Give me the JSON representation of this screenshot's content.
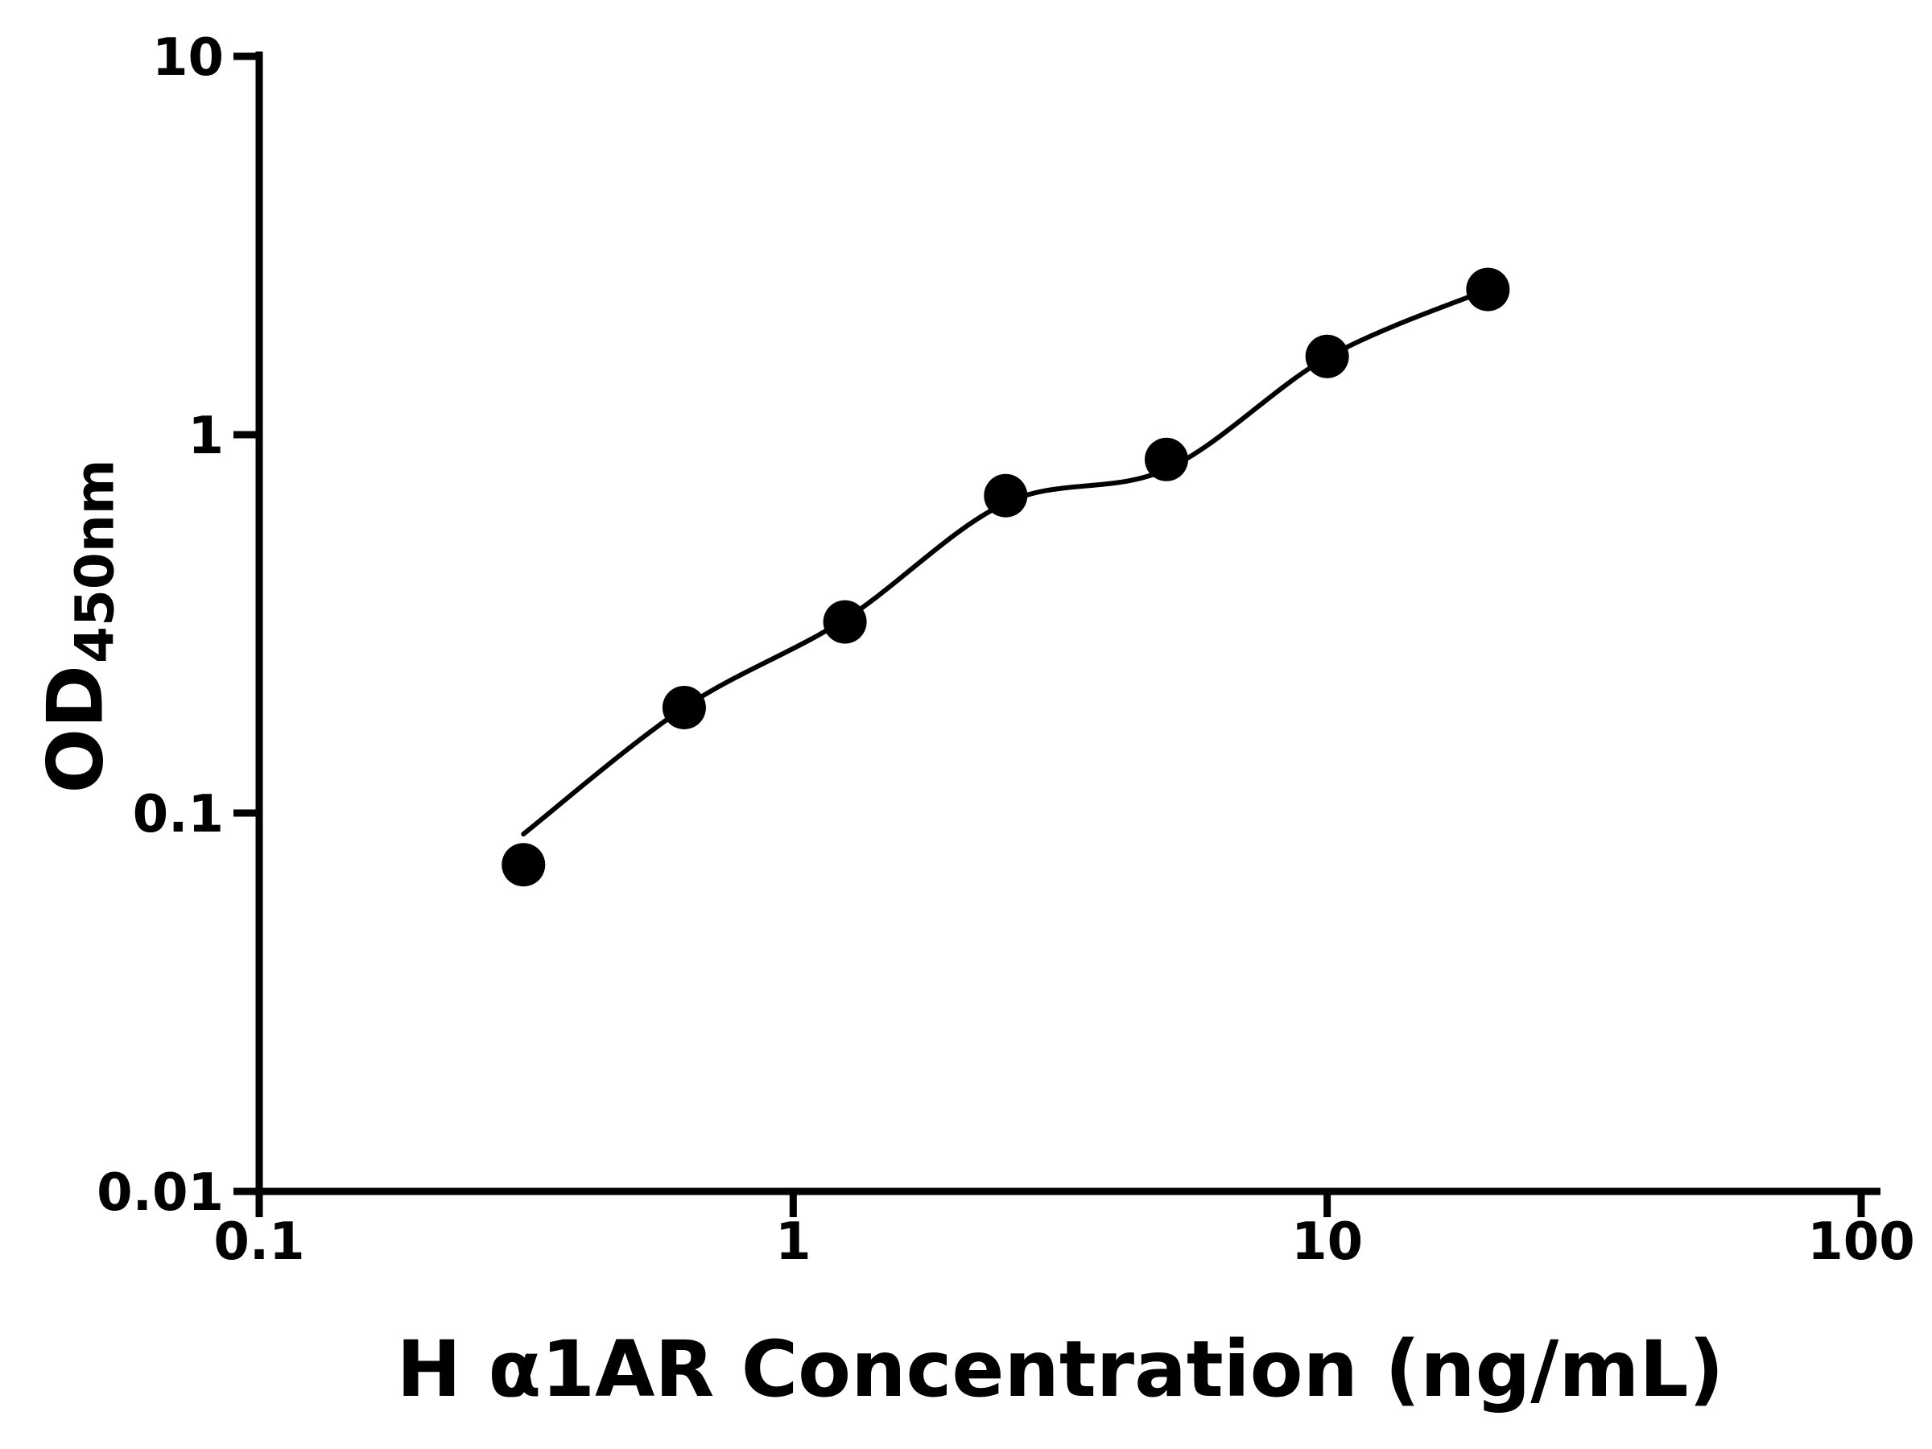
{
  "chart_data": {
    "type": "scatter",
    "title": "",
    "xlabel": "H α1AR Concentration (ng/mL)",
    "ylabel_main": "OD",
    "ylabel_sub": "450nm",
    "xscale": "log",
    "yscale": "log",
    "xlim": [
      0.1,
      100
    ],
    "ylim": [
      0.01,
      10
    ],
    "x_ticks": [
      0.1,
      1,
      10,
      100
    ],
    "x_tick_labels": [
      "0.1",
      "1",
      "10",
      "100"
    ],
    "y_ticks": [
      0.01,
      0.1,
      1,
      10
    ],
    "y_tick_labels": [
      "0.01",
      "0.1",
      "1",
      "10"
    ],
    "grid": false,
    "legend": null,
    "x": [
      0.3125,
      0.625,
      1.25,
      2.5,
      5,
      10,
      20
    ],
    "y": [
      0.073,
      0.19,
      0.32,
      0.69,
      0.86,
      1.61,
      2.42
    ],
    "fit_points": [
      [
        0.3125,
        0.088
      ],
      [
        0.625,
        0.19
      ],
      [
        1.25,
        0.325
      ],
      [
        2.5,
        0.66
      ],
      [
        5,
        0.81
      ],
      [
        10,
        1.6
      ],
      [
        20,
        2.42
      ]
    ],
    "marker_color": "#000000",
    "line_color": "#000000",
    "axis_color": "#000000",
    "background": "#ffffff"
  }
}
